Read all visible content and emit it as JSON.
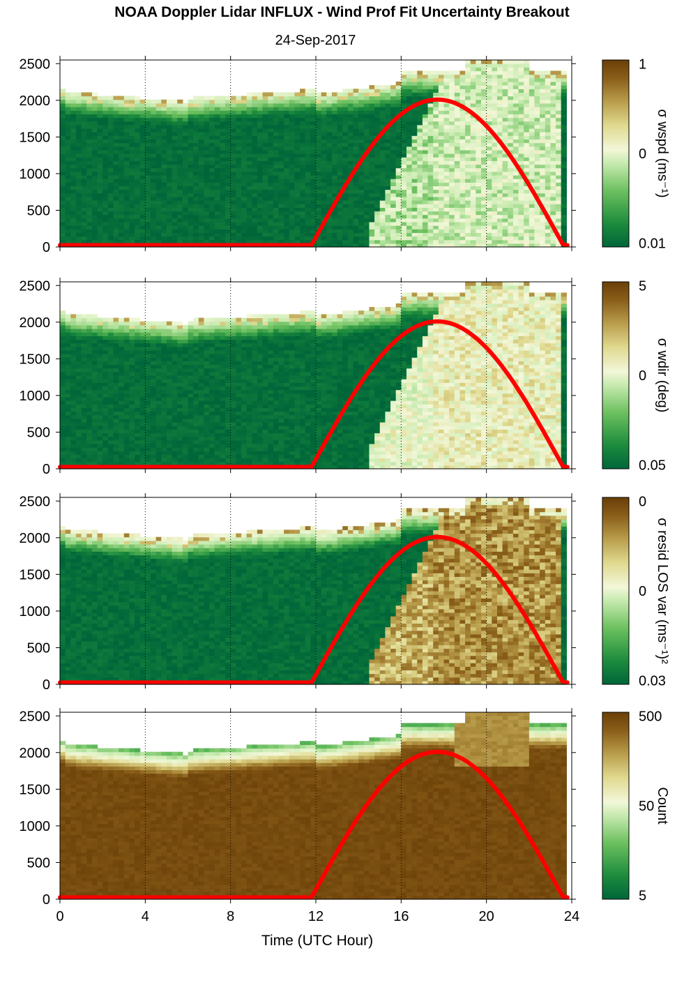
{
  "header": {
    "title": "NOAA Doppler Lidar INFLUX - Wind Prof Fit Uncertainty Breakout",
    "date": "24-Sep-2017"
  },
  "colors": {
    "sun_curve": "#ff0000",
    "colormap": [
      "#00663a",
      "#1a8a3c",
      "#6cc05f",
      "#c8ebb0",
      "#f2f7d8",
      "#e0d98f",
      "#b89c4a",
      "#8a5f1a",
      "#6a3f08"
    ]
  },
  "chart_data": {
    "type": "heatmap",
    "xlabel": "Time (UTC Hour)",
    "xlim": [
      0,
      24
    ],
    "ylim": [
      0,
      2550
    ],
    "x_ticks": [
      "0",
      "4",
      "8",
      "12",
      "16",
      "20",
      "24"
    ],
    "y_ticks": [
      "0",
      "500",
      "1000",
      "1500",
      "2000",
      "2500"
    ],
    "vertical_dotted_lines_hours": [
      4,
      8,
      12,
      16,
      20,
      24
    ],
    "overlay_curve": {
      "description_visible": "red curve",
      "sunrise_hour": 11.8,
      "sunset_hour": 23.6,
      "peak_hour": 17.6,
      "peak_altitude_m": 2010,
      "baseline_m": 25
    },
    "panels": [
      {
        "colorbar_label": "σ wspd (ms⁻¹)",
        "colorbar_ticks": [
          "1",
          "0",
          "0.01"
        ],
        "log_scale": true
      },
      {
        "colorbar_label": "σ wdir (deg)",
        "colorbar_ticks": [
          "5",
          "0",
          "0.05"
        ],
        "log_scale": true
      },
      {
        "colorbar_label": "σ resid LOS var (ms⁻¹)²",
        "colorbar_ticks": [
          "0",
          "0",
          "0.03"
        ],
        "log_scale": true
      },
      {
        "colorbar_label": "Count",
        "colorbar_ticks": [
          "500",
          "50",
          "5"
        ],
        "log_scale": true
      }
    ]
  }
}
